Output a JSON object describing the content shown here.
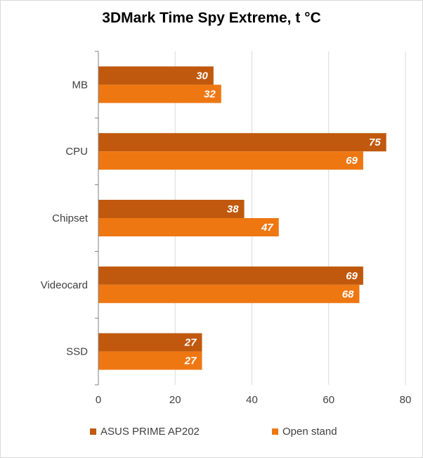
{
  "chart_data": {
    "type": "bar",
    "orientation": "horizontal",
    "title": "3DMark Time Spy Extreme, t °C",
    "categories": [
      "MB",
      "CPU",
      "Chipset",
      "Videocard",
      "SSD"
    ],
    "series": [
      {
        "name": "ASUS PRIME AP202",
        "values": [
          30,
          75,
          38,
          69,
          27
        ],
        "color": "#C0590D"
      },
      {
        "name": "Open stand",
        "values": [
          32,
          69,
          47,
          68,
          27
        ],
        "color": "#EE7712"
      }
    ],
    "xlim": [
      0,
      80
    ],
    "xticks": [
      "0",
      "20",
      "40",
      "60",
      "80"
    ],
    "grid": true,
    "data_labels": true,
    "legend_position": "bottom"
  }
}
